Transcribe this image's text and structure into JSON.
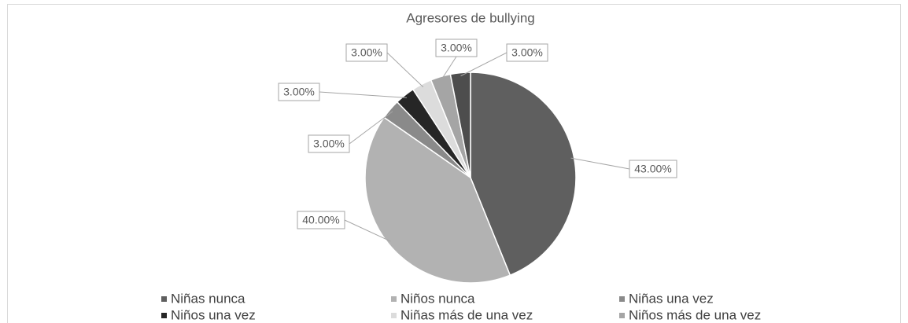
{
  "chart_data": {
    "type": "pie",
    "title": "Agresores de bullying",
    "categories": [
      "Niñas nunca",
      "Niños nunca",
      "Niñas una vez",
      "Niños una vez",
      "Niñas más de una vez",
      "Niños más de una vez",
      null
    ],
    "values": [
      43,
      40,
      3,
      3,
      3,
      3,
      3
    ],
    "value_labels": [
      "43.00%",
      "40.00%",
      "3.00%",
      "3.00%",
      "3.00%",
      "3.00%",
      "3.00%"
    ],
    "colors": [
      "#5f5f5f",
      "#b2b2b2",
      "#8a8a8a",
      "#262626",
      "#dcdcdc",
      "#a5a5a5",
      "#4d4d4d"
    ],
    "legend": "bottom"
  }
}
